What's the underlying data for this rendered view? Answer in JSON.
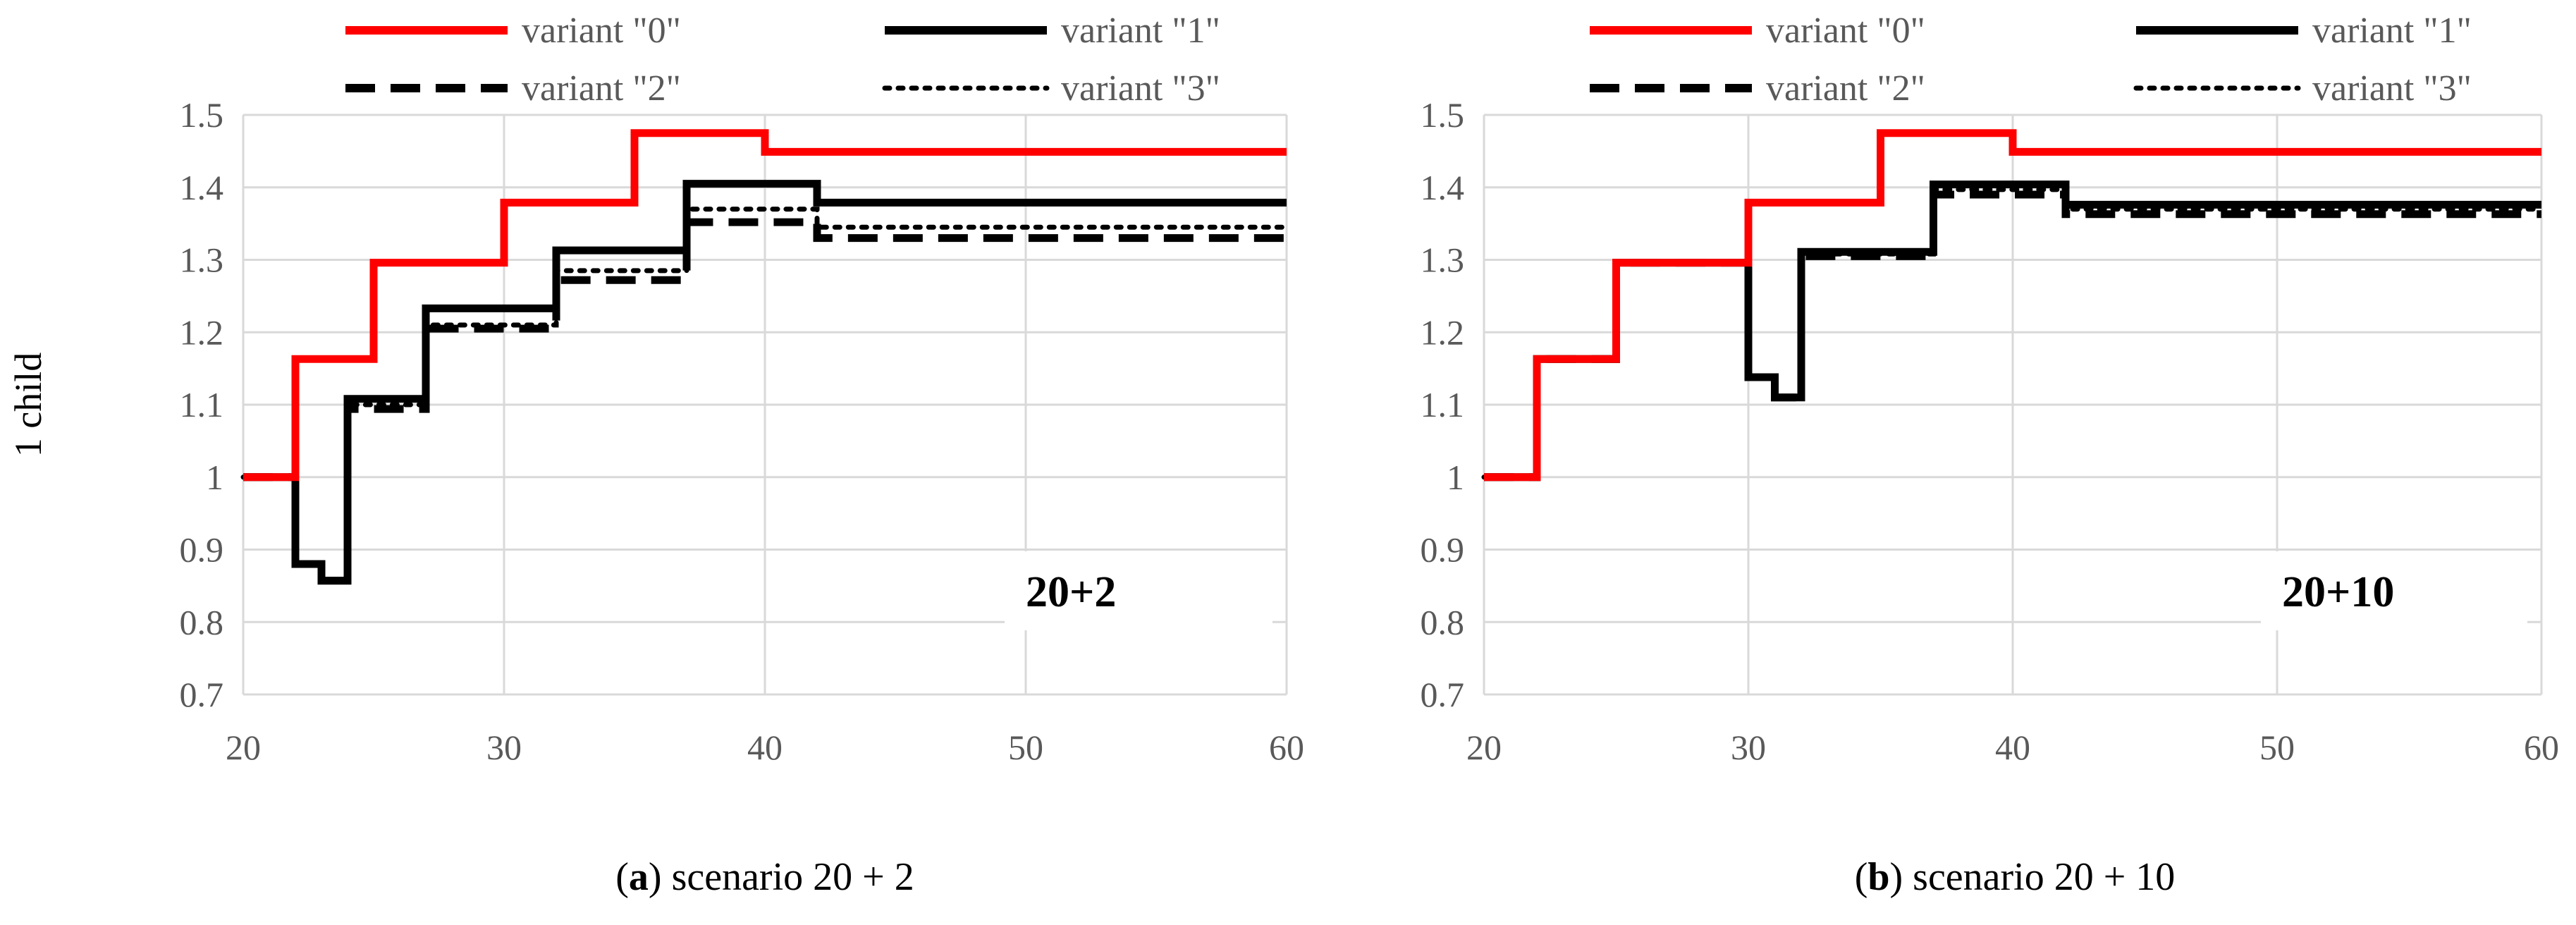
{
  "chart_data": [
    {
      "type": "line",
      "step": true,
      "ylabel": "1 child",
      "annotation": "20+2",
      "caption": {
        "letter": "a",
        "text": "scenario 20 + 2"
      },
      "xlim": [
        20,
        60
      ],
      "ylim": [
        0.7,
        1.5
      ],
      "x_ticks": [
        "20",
        "30",
        "40",
        "50",
        "60"
      ],
      "y_ticks": [
        "0.7",
        "0.8",
        "0.9",
        "1",
        "1.1",
        "1.2",
        "1.3",
        "1.4",
        "1.5"
      ],
      "grid": true,
      "legend_position": "top",
      "series": [
        {
          "name": "variant \"0\"",
          "color": "#ff0000",
          "style": "solid",
          "x": [
            20,
            22,
            25,
            30,
            35,
            40,
            60
          ],
          "y": [
            1.0,
            1.163,
            1.296,
            1.379,
            1.475,
            1.449,
            1.449
          ]
        },
        {
          "name": "variant \"1\"",
          "color": "#000000",
          "style": "solid",
          "x": [
            20,
            22,
            23,
            24,
            27,
            32,
            37,
            42,
            60
          ],
          "y": [
            1.0,
            0.88,
            0.857,
            1.108,
            1.233,
            1.313,
            1.405,
            1.379,
            1.379
          ]
        },
        {
          "name": "variant \"2\"",
          "color": "#000000",
          "style": "dash",
          "x": [
            20,
            22,
            23,
            24,
            27,
            32,
            37,
            42,
            60
          ],
          "y": [
            1.0,
            0.88,
            0.857,
            1.094,
            1.205,
            1.272,
            1.352,
            1.33,
            1.33
          ]
        },
        {
          "name": "variant \"3\"",
          "color": "#000000",
          "style": "dot",
          "x": [
            20,
            22,
            23,
            24,
            27,
            32,
            37,
            42,
            60
          ],
          "y": [
            1.0,
            0.88,
            0.857,
            1.1,
            1.21,
            1.285,
            1.37,
            1.345,
            1.345
          ]
        }
      ]
    },
    {
      "type": "line",
      "step": true,
      "ylabel": "",
      "annotation": "20+10",
      "caption": {
        "letter": "b",
        "text": "scenario 20 + 10"
      },
      "xlim": [
        20,
        60
      ],
      "ylim": [
        0.7,
        1.5
      ],
      "x_ticks": [
        "20",
        "30",
        "40",
        "50",
        "60"
      ],
      "y_ticks": [
        "0.7",
        "0.8",
        "0.9",
        "1",
        "1.1",
        "1.2",
        "1.3",
        "1.4",
        "1.5"
      ],
      "grid": true,
      "legend_position": "top",
      "series": [
        {
          "name": "variant \"0\"",
          "color": "#ff0000",
          "style": "solid",
          "x": [
            20,
            22,
            25,
            30,
            35,
            40,
            60
          ],
          "y": [
            1.0,
            1.163,
            1.296,
            1.379,
            1.475,
            1.449,
            1.449
          ]
        },
        {
          "name": "variant \"1\"",
          "color": "#000000",
          "style": "solid",
          "x": [
            20,
            22,
            25,
            30,
            31,
            32,
            37,
            42,
            60
          ],
          "y": [
            1.0,
            1.163,
            1.296,
            1.138,
            1.11,
            1.311,
            1.404,
            1.376,
            1.376
          ]
        },
        {
          "name": "variant \"2\"",
          "color": "#000000",
          "style": "dash",
          "x": [
            20,
            22,
            25,
            30,
            31,
            32,
            37,
            42,
            60
          ],
          "y": [
            1.0,
            1.163,
            1.296,
            1.138,
            1.11,
            1.305,
            1.39,
            1.363,
            1.363
          ]
        },
        {
          "name": "variant \"3\"",
          "color": "#000000",
          "style": "dot",
          "x": [
            20,
            22,
            25,
            30,
            31,
            32,
            37,
            42,
            60
          ],
          "y": [
            1.0,
            1.163,
            1.296,
            1.138,
            1.11,
            1.308,
            1.397,
            1.37,
            1.37
          ]
        }
      ]
    }
  ]
}
